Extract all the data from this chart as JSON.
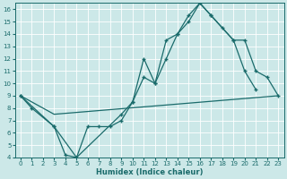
{
  "title": "",
  "xlabel": "Humidex (Indice chaleur)",
  "bg_color": "#cce8e8",
  "line_color": "#1a6b6b",
  "grid_color": "#b0d8d8",
  "xlim": [
    -0.5,
    23.5
  ],
  "ylim": [
    4,
    16.5
  ],
  "xtick_labels": [
    "0",
    "1",
    "2",
    "3",
    "4",
    "5",
    "6",
    "7",
    "8",
    "9",
    "10",
    "11",
    "12",
    "13",
    "14",
    "15",
    "16",
    "17",
    "18",
    "19",
    "20",
    "21",
    "22",
    "23"
  ],
  "xtick_vals": [
    0,
    1,
    2,
    3,
    4,
    5,
    6,
    7,
    8,
    9,
    10,
    11,
    12,
    13,
    14,
    15,
    16,
    17,
    18,
    19,
    20,
    21,
    22,
    23
  ],
  "ytick_vals": [
    4,
    5,
    6,
    7,
    8,
    9,
    10,
    11,
    12,
    13,
    14,
    15,
    16
  ],
  "line1_x": [
    0,
    1,
    3,
    4,
    5,
    6,
    7,
    8,
    9,
    10,
    11,
    12,
    13,
    14,
    15,
    16,
    17,
    18,
    19,
    20,
    21
  ],
  "line1_y": [
    9.0,
    8.0,
    6.5,
    4.2,
    4.0,
    6.5,
    6.5,
    6.5,
    7.0,
    8.5,
    12.0,
    10.0,
    13.5,
    14.0,
    15.5,
    16.5,
    15.5,
    14.5,
    13.5,
    11.0,
    9.5
  ],
  "line2_x": [
    0,
    3,
    5,
    9,
    10,
    11,
    12,
    13,
    14,
    15,
    16,
    17,
    19,
    20,
    21,
    22,
    23
  ],
  "line2_y": [
    9.0,
    6.5,
    4.0,
    7.5,
    8.5,
    10.5,
    10.0,
    12.0,
    14.0,
    15.0,
    16.5,
    15.5,
    13.5,
    13.5,
    11.0,
    10.5,
    9.0
  ],
  "line3_x": [
    0,
    3,
    23
  ],
  "line3_y": [
    9.0,
    7.5,
    9.0
  ]
}
